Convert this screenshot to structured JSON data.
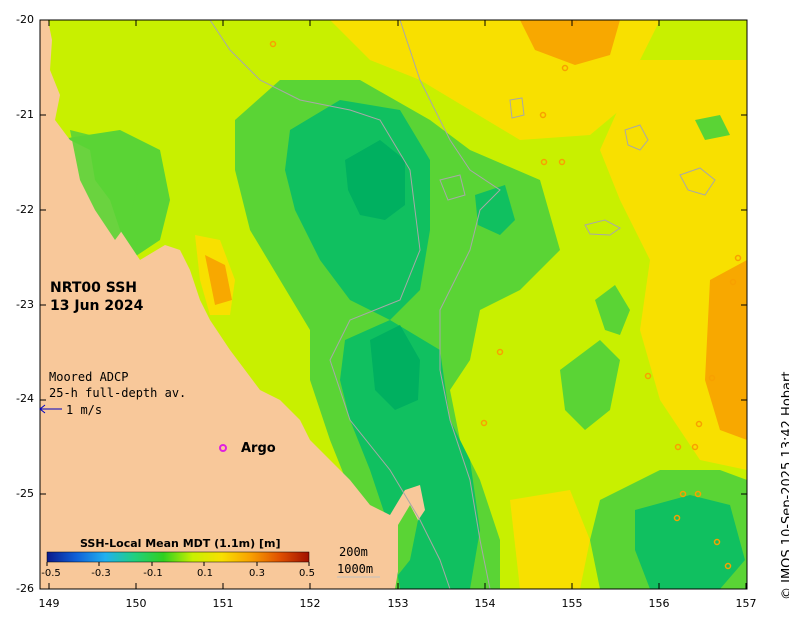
{
  "product": {
    "title_line1": "NRT00 SSH",
    "title_line2": "13 Jun 2024"
  },
  "axes": {
    "lon_ticks": [
      "149",
      "150",
      "151",
      "152",
      "153",
      "154",
      "155",
      "156",
      "157"
    ],
    "lat_ticks": [
      "-20",
      "-21",
      "-22",
      "-23",
      "-24",
      "-25",
      "-26"
    ]
  },
  "legend": {
    "adcp_line1": "Moored ADCP",
    "adcp_line2": "25-h full-depth av.",
    "vector_scale": "1 m/s",
    "argo_label": "Argo",
    "argo_color": "#e020e0"
  },
  "colorbar": {
    "title": "SSH-Local Mean MDT (1.1m) [m]",
    "ticks": [
      "-0.5",
      "-0.3",
      "-0.1",
      "0.1",
      "0.3",
      "0.5"
    ],
    "range": [
      -0.5,
      0.5
    ],
    "colors": [
      "#0a1a8c",
      "#1060d8",
      "#20b0f0",
      "#20d080",
      "#30d020",
      "#c8f000",
      "#f8e000",
      "#f8a000",
      "#e05000",
      "#a01000"
    ]
  },
  "isobaths": {
    "line1": "200m",
    "line2": "1000m"
  },
  "colors": {
    "land": "#f8c89a",
    "green": "#5ad435",
    "dark_green": "#10c060",
    "yellow_green": "#c8f000",
    "yellow": "#f8e000",
    "orange": "#f8a800"
  },
  "credit": "© IMOS 10-Sep-2025 13:42 Hobart"
}
